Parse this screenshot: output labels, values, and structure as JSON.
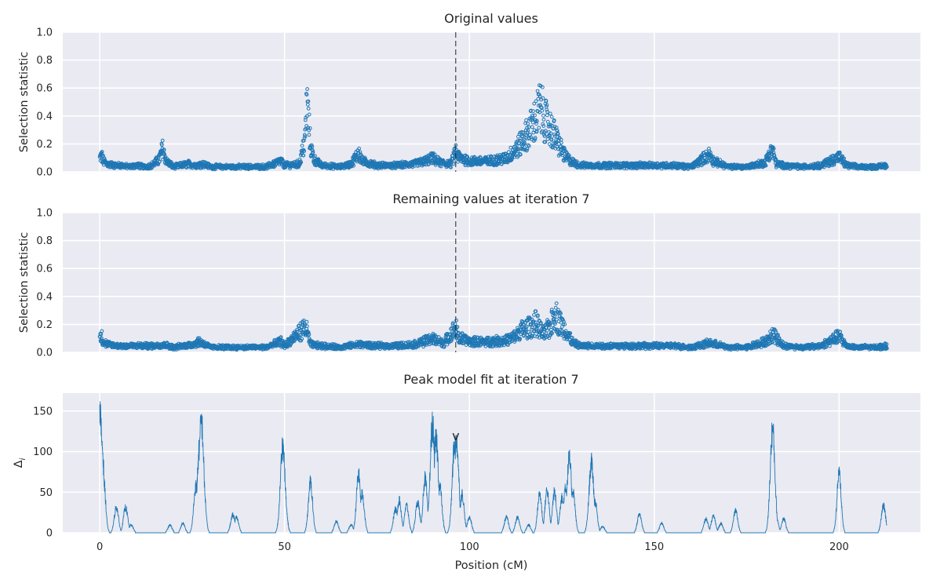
{
  "chart_data": [
    {
      "type": "scatter",
      "title": "Original values",
      "xlabel": "",
      "ylabel": "Selection statistic",
      "xlim": [
        -10,
        222
      ],
      "ylim": [
        0,
        1.0
      ],
      "y_ticks": [
        "0.0",
        "0.2",
        "0.4",
        "0.6",
        "0.8",
        "1.0"
      ],
      "x_ticks": [
        0,
        50,
        100,
        150,
        200
      ],
      "grid": true,
      "marker": "open-circle",
      "vline_x": 96.3,
      "color": "#1f77b4",
      "sampled_points": [
        [
          0,
          0.09
        ],
        [
          0.5,
          0.11
        ],
        [
          1,
          0.07
        ],
        [
          2,
          0.05
        ],
        [
          4,
          0.04
        ],
        [
          6,
          0.04
        ],
        [
          8,
          0.03
        ],
        [
          10,
          0.04
        ],
        [
          12,
          0.03
        ],
        [
          14,
          0.04
        ],
        [
          16,
          0.08
        ],
        [
          17,
          0.16
        ],
        [
          18,
          0.07
        ],
        [
          20,
          0.03
        ],
        [
          22,
          0.04
        ],
        [
          24,
          0.05
        ],
        [
          26,
          0.04
        ],
        [
          28,
          0.05
        ],
        [
          30,
          0.03
        ],
        [
          35,
          0.03
        ],
        [
          40,
          0.03
        ],
        [
          45,
          0.03
        ],
        [
          49,
          0.07
        ],
        [
          50,
          0.04
        ],
        [
          54,
          0.05
        ],
        [
          55.5,
          0.22
        ],
        [
          56,
          0.49
        ],
        [
          56.5,
          0.36
        ],
        [
          57,
          0.18
        ],
        [
          58,
          0.08
        ],
        [
          60,
          0.04
        ],
        [
          65,
          0.03
        ],
        [
          68,
          0.05
        ],
        [
          69,
          0.09
        ],
        [
          70,
          0.13
        ],
        [
          71,
          0.07
        ],
        [
          75,
          0.04
        ],
        [
          80,
          0.04
        ],
        [
          85,
          0.05
        ],
        [
          88,
          0.07
        ],
        [
          90,
          0.09
        ],
        [
          92,
          0.06
        ],
        [
          95,
          0.05
        ],
        [
          96.3,
          0.14
        ],
        [
          97,
          0.1
        ],
        [
          100,
          0.07
        ],
        [
          105,
          0.07
        ],
        [
          110,
          0.09
        ],
        [
          112,
          0.14
        ],
        [
          114,
          0.2
        ],
        [
          116,
          0.28
        ],
        [
          118,
          0.37
        ],
        [
          119,
          0.45
        ],
        [
          120,
          0.4
        ],
        [
          121,
          0.33
        ],
        [
          122,
          0.3
        ],
        [
          124,
          0.2
        ],
        [
          126,
          0.1
        ],
        [
          128,
          0.06
        ],
        [
          130,
          0.04
        ],
        [
          135,
          0.04
        ],
        [
          140,
          0.04
        ],
        [
          145,
          0.04
        ],
        [
          150,
          0.04
        ],
        [
          155,
          0.04
        ],
        [
          160,
          0.03
        ],
        [
          165,
          0.12
        ],
        [
          166,
          0.07
        ],
        [
          170,
          0.03
        ],
        [
          175,
          0.03
        ],
        [
          180,
          0.06
        ],
        [
          181,
          0.12
        ],
        [
          182,
          0.15
        ],
        [
          183,
          0.05
        ],
        [
          185,
          0.04
        ],
        [
          190,
          0.03
        ],
        [
          195,
          0.04
        ],
        [
          200,
          0.1
        ],
        [
          202,
          0.04
        ],
        [
          205,
          0.03
        ],
        [
          210,
          0.03
        ],
        [
          213,
          0.04
        ]
      ]
    },
    {
      "type": "scatter",
      "title": "Remaining values at iteration 7",
      "xlabel": "",
      "ylabel": "Selection statistic",
      "xlim": [
        -10,
        222
      ],
      "ylim": [
        0,
        1.0
      ],
      "y_ticks": [
        "0.0",
        "0.2",
        "0.4",
        "0.6",
        "0.8",
        "1.0"
      ],
      "x_ticks": [
        0,
        50,
        100,
        150,
        200
      ],
      "grid": true,
      "marker": "open-circle",
      "vline_x": 96.3,
      "color": "#1f77b4",
      "sampled_points": [
        [
          0,
          0.09
        ],
        [
          0.5,
          0.11
        ],
        [
          1,
          0.07
        ],
        [
          2,
          0.05
        ],
        [
          5,
          0.04
        ],
        [
          10,
          0.04
        ],
        [
          15,
          0.04
        ],
        [
          17,
          0.05
        ],
        [
          20,
          0.03
        ],
        [
          25,
          0.05
        ],
        [
          27,
          0.07
        ],
        [
          30,
          0.03
        ],
        [
          35,
          0.03
        ],
        [
          40,
          0.03
        ],
        [
          45,
          0.03
        ],
        [
          49,
          0.07
        ],
        [
          50,
          0.04
        ],
        [
          55.5,
          0.17
        ],
        [
          56,
          0.15
        ],
        [
          57,
          0.05
        ],
        [
          60,
          0.04
        ],
        [
          65,
          0.03
        ],
        [
          70,
          0.05
        ],
        [
          75,
          0.04
        ],
        [
          80,
          0.04
        ],
        [
          85,
          0.05
        ],
        [
          90,
          0.09
        ],
        [
          93,
          0.06
        ],
        [
          96.3,
          0.17
        ],
        [
          97,
          0.1
        ],
        [
          100,
          0.07
        ],
        [
          105,
          0.07
        ],
        [
          110,
          0.08
        ],
        [
          112,
          0.1
        ],
        [
          114,
          0.15
        ],
        [
          116,
          0.17
        ],
        [
          118,
          0.2
        ],
        [
          120,
          0.12
        ],
        [
          122,
          0.18
        ],
        [
          123,
          0.28
        ],
        [
          124,
          0.22
        ],
        [
          126,
          0.15
        ],
        [
          128,
          0.06
        ],
        [
          130,
          0.04
        ],
        [
          135,
          0.04
        ],
        [
          140,
          0.04
        ],
        [
          145,
          0.04
        ],
        [
          150,
          0.04
        ],
        [
          155,
          0.04
        ],
        [
          160,
          0.03
        ],
        [
          165,
          0.06
        ],
        [
          170,
          0.03
        ],
        [
          175,
          0.03
        ],
        [
          181,
          0.08
        ],
        [
          182,
          0.13
        ],
        [
          185,
          0.04
        ],
        [
          190,
          0.03
        ],
        [
          195,
          0.04
        ],
        [
          200,
          0.11
        ],
        [
          202,
          0.04
        ],
        [
          205,
          0.03
        ],
        [
          210,
          0.03
        ],
        [
          213,
          0.04
        ]
      ]
    },
    {
      "type": "line",
      "title": "Peak model fit at iteration 7",
      "xlabel": "Position (cM)",
      "ylabel": "Δ",
      "ylabel_subscript": "i",
      "xlim": [
        -10,
        222
      ],
      "ylim": [
        0,
        172
      ],
      "y_ticks": [
        0,
        50,
        100,
        150
      ],
      "x_ticks": [
        0,
        50,
        100,
        150,
        200
      ],
      "grid": true,
      "color": "#1f77b4",
      "peak_marker": {
        "x": 96.3,
        "y": 115,
        "label": "v"
      },
      "peaks": [
        [
          0,
          157
        ],
        [
          0.5,
          120
        ],
        [
          1,
          70
        ],
        [
          4.5,
          33
        ],
        [
          7,
          33
        ],
        [
          8.5,
          10
        ],
        [
          19,
          10
        ],
        [
          22.5,
          12
        ],
        [
          26,
          60
        ],
        [
          27,
          110
        ],
        [
          27.5,
          145
        ],
        [
          28,
          70
        ],
        [
          36,
          23
        ],
        [
          37,
          20
        ],
        [
          49.5,
          113
        ],
        [
          50,
          50
        ],
        [
          57,
          65
        ],
        [
          64,
          15
        ],
        [
          68,
          10
        ],
        [
          70,
          75
        ],
        [
          71,
          50
        ],
        [
          80,
          30
        ],
        [
          81,
          42
        ],
        [
          83,
          35
        ],
        [
          86,
          40
        ],
        [
          88,
          70
        ],
        [
          90,
          138
        ],
        [
          91,
          120
        ],
        [
          92,
          60
        ],
        [
          96,
          115
        ],
        [
          96.5,
          118
        ],
        [
          98,
          50
        ],
        [
          100,
          20
        ],
        [
          110,
          20
        ],
        [
          113,
          20
        ],
        [
          116,
          10
        ],
        [
          119,
          50
        ],
        [
          121,
          55
        ],
        [
          123,
          52
        ],
        [
          125,
          45
        ],
        [
          126,
          60
        ],
        [
          127,
          95
        ],
        [
          128,
          55
        ],
        [
          133,
          90
        ],
        [
          134,
          40
        ],
        [
          136,
          8
        ],
        [
          146,
          24
        ],
        [
          152,
          12
        ],
        [
          164,
          18
        ],
        [
          166,
          22
        ],
        [
          168,
          12
        ],
        [
          172,
          28
        ],
        [
          182,
          133
        ],
        [
          183,
          20
        ],
        [
          185,
          18
        ],
        [
          200,
          76
        ],
        [
          212,
          35
        ]
      ]
    }
  ]
}
